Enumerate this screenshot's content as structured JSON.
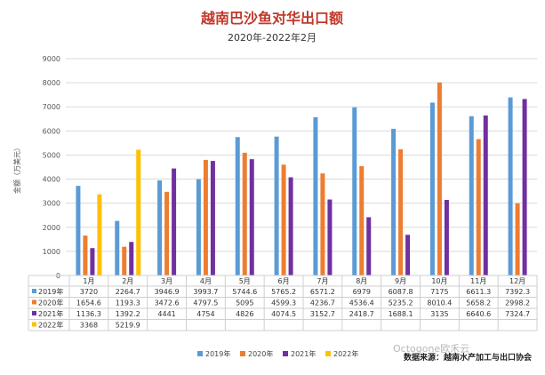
{
  "chart_data": {
    "type": "bar",
    "title": "越南巴沙鱼对华出口额",
    "subtitle": "2020年-2022年2月",
    "ylabel": "金额（万美元）",
    "ylim": [
      0,
      9000
    ],
    "yticks": [
      0,
      1000,
      2000,
      3000,
      4000,
      5000,
      6000,
      7000,
      8000,
      9000
    ],
    "grid": true,
    "legend_position": "bottom",
    "categories": [
      "1月",
      "2月",
      "3月",
      "4月",
      "5月",
      "6月",
      "7月",
      "8月",
      "9月",
      "10月",
      "11月",
      "12月"
    ],
    "series": [
      {
        "name": "2019年",
        "color": "#5b9bd5",
        "values": [
          3720,
          2264.7,
          3946.9,
          3993.7,
          5744.6,
          5765.2,
          6571.2,
          6979,
          6087.8,
          7175,
          6611.3,
          7392.3
        ]
      },
      {
        "name": "2020年",
        "color": "#ed7d31",
        "values": [
          1654.6,
          1193.3,
          3472.6,
          4797.5,
          5095,
          4599.3,
          4236.7,
          4536.4,
          5235.2,
          8010.4,
          5658.2,
          2998.2
        ]
      },
      {
        "name": "2021年",
        "color": "#7030a0",
        "values": [
          1136.3,
          1392.2,
          4441,
          4754,
          4826,
          4074.5,
          3152.7,
          2418.7,
          1688.1,
          3135,
          6640.6,
          7324.7
        ]
      },
      {
        "name": "2022年",
        "color": "#ffc000",
        "values": [
          3368,
          5219.9,
          null,
          null,
          null,
          null,
          null,
          null,
          null,
          null,
          null,
          null
        ]
      }
    ],
    "table_values": [
      [
        "3720",
        "2264.7",
        "3946.9",
        "3993.7",
        "5744.6",
        "5765.2",
        "6571.2",
        "6979",
        "6087.8",
        "7175",
        "6611.3",
        "7392.3"
      ],
      [
        "1654.6",
        "1193.3",
        "3472.6",
        "4797.5",
        "5095",
        "4599.3",
        "4236.7",
        "4536.4",
        "5235.2",
        "8010.4",
        "5658.2",
        "2998.2"
      ],
      [
        "1136.3",
        "1392.2",
        "4441",
        "4754",
        "4826",
        "4074.5",
        "3152.7",
        "2418.7",
        "1688.1",
        "3135",
        "6640.6",
        "7324.7"
      ],
      [
        "3368",
        "5219.9",
        "",
        "",
        "",
        "",
        "",
        "",
        "",
        "",
        "",
        ""
      ]
    ]
  },
  "source": "数据来源：越南水产加工与出口协会",
  "watermark": "Octogone欧禾云"
}
